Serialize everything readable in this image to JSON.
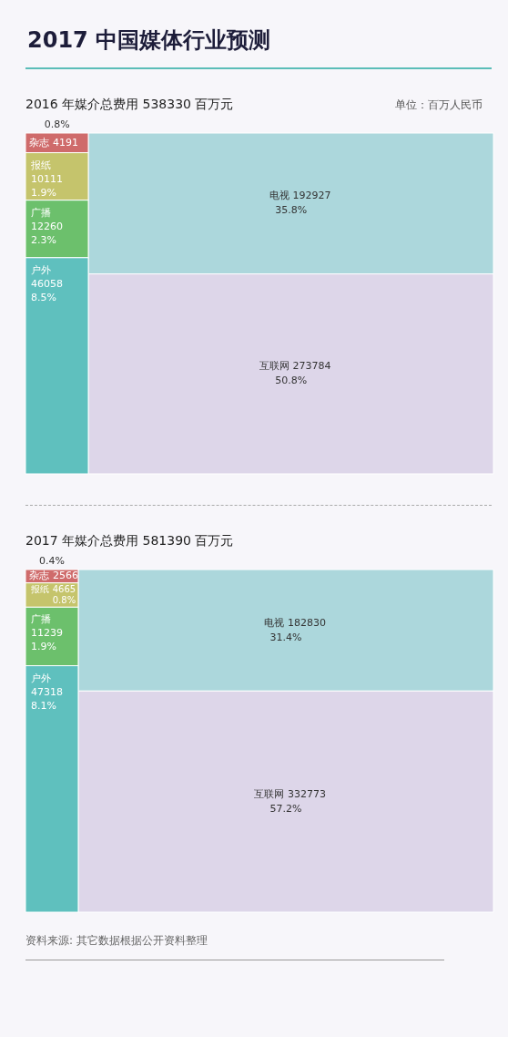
{
  "chart_data": [
    {
      "type": "other",
      "title": "2017 中国媒体行业预测",
      "subtitle": "2016 年媒介总费用 538330 百万元",
      "data_labels": true,
      "annotations": [
        "单位：百万人民币",
        {
          "text": "0.8%",
          "x": "杂志"
        },
        {
          "text": "1.9%",
          "x": "报纸"
        },
        {
          "text": "2.3%",
          "x": "广播"
        },
        {
          "text": "8.5%",
          "x": "户外"
        },
        {
          "text": "35.8%",
          "x": "电视"
        },
        {
          "text": "50.8%",
          "x": "互联网"
        }
      ],
      "categories": [
        "杂志",
        "报纸",
        "广播",
        "户外",
        "电视",
        "互联网"
      ],
      "values": [
        4191,
        10111,
        12260,
        46058,
        192927,
        273784
      ],
      "colors": [
        "#cf6b6b",
        "#c5c46c",
        "#6cc06c",
        "#5fc0be",
        "#acd7dc",
        "#ddd6e9"
      ]
    },
    {
      "type": "other",
      "title": "2017 年媒介总费用 581390 百万元",
      "data_labels": true,
      "annotations": [
        "资料来源: 其它数据根据公开资料整理",
        {
          "text": "0.4%",
          "x": "杂志"
        },
        {
          "text": "0.8%",
          "x": "报纸"
        },
        {
          "text": "1.9%",
          "x": "广播"
        },
        {
          "text": "8.1%",
          "x": "户外"
        },
        {
          "text": "31.4%",
          "x": "电视"
        },
        {
          "text": "57.2%",
          "x": "互联网"
        }
      ],
      "categories": [
        "杂志",
        "报纸",
        "广播",
        "户外",
        "电视",
        "互联网"
      ],
      "values": [
        2566,
        4665,
        11239,
        47318,
        182830,
        332773
      ],
      "colors": [
        "#cf6b6b",
        "#c5c46c",
        "#6cc06c",
        "#5fc0be",
        "#acd7dc",
        "#ddd6e9"
      ]
    }
  ]
}
